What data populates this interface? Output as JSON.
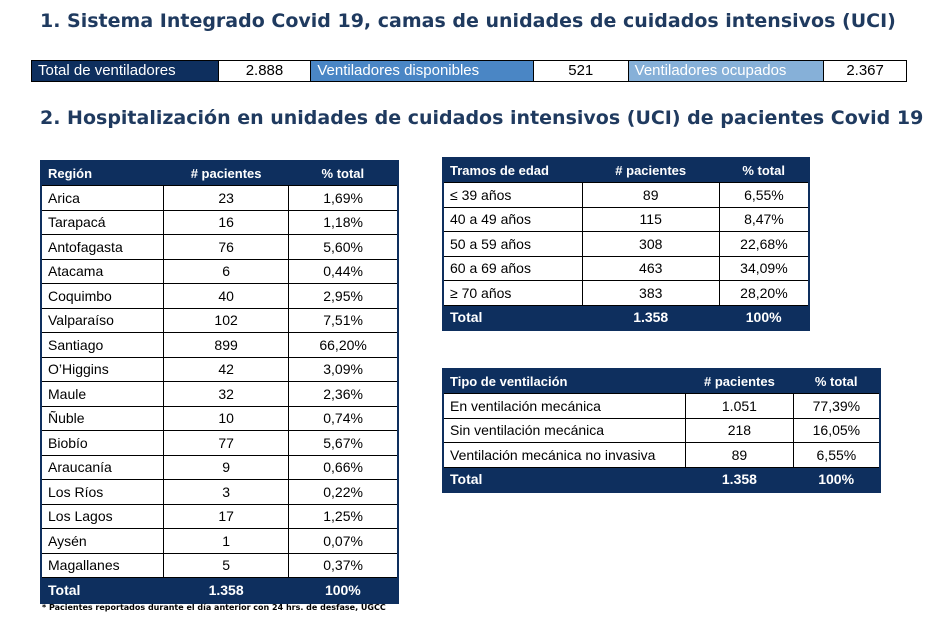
{
  "section1": {
    "title": "1. Sistema Integrado Covid 19, camas de unidades de cuidados intensivos (UCI)"
  },
  "ventiladores": {
    "total_label": "Total de ventiladores",
    "total_value": "2.888",
    "disponibles_label": "Ventiladores disponibles",
    "disponibles_value": "521",
    "ocupados_label": "Ventiladores ocupados",
    "ocupados_value": "2.367",
    "colors": {
      "dark": "#0e2f5e",
      "mid": "#4a86c5",
      "light": "#86b0d8"
    }
  },
  "section2": {
    "title": "2. Hospitalización en unidades de cuidados intensivos (UCI) de pacientes Covid 19"
  },
  "region_table": {
    "headers": [
      "Región",
      "# pacientes",
      "% total"
    ],
    "rows": [
      [
        "Arica",
        "23",
        "1,69%"
      ],
      [
        "Tarapacá",
        "16",
        "1,18%"
      ],
      [
        "Antofagasta",
        "76",
        "5,60%"
      ],
      [
        "Atacama",
        "6",
        "0,44%"
      ],
      [
        "Coquimbo",
        "40",
        "2,95%"
      ],
      [
        "Valparaíso",
        "102",
        "7,51%"
      ],
      [
        "Santiago",
        "899",
        "66,20%"
      ],
      [
        "O’Higgins",
        "42",
        "3,09%"
      ],
      [
        "Maule",
        "32",
        "2,36%"
      ],
      [
        "Ñuble",
        "10",
        "0,74%"
      ],
      [
        "Biobío",
        "77",
        "5,67%"
      ],
      [
        "Araucanía",
        "9",
        "0,66%"
      ],
      [
        "Los Ríos",
        "3",
        "0,22%"
      ],
      [
        "Los Lagos",
        "17",
        "1,25%"
      ],
      [
        "Aysén",
        "1",
        "0,07%"
      ],
      [
        "Magallanes",
        "5",
        "0,37%"
      ]
    ],
    "total": [
      "Total",
      "1.358",
      "100%"
    ],
    "footnote": "* Pacientes reportados durante el día anterior con 24 hrs. de desfase, UGCC"
  },
  "edad_table": {
    "headers": [
      "Tramos de edad",
      "# pacientes",
      "% total"
    ],
    "rows": [
      [
        "≤ 39 años",
        "89",
        "6,55%"
      ],
      [
        "40 a 49 años",
        "115",
        "8,47%"
      ],
      [
        "50 a 59 años",
        "308",
        "22,68%"
      ],
      [
        "60 a 69 años",
        "463",
        "34,09%"
      ],
      [
        "≥ 70 años",
        "383",
        "28,20%"
      ]
    ],
    "total": [
      "Total",
      "1.358",
      "100%"
    ]
  },
  "vent_table": {
    "headers": [
      "Tipo de ventilación",
      "# pacientes",
      "% total"
    ],
    "rows": [
      [
        "En ventilación mecánica",
        "1.051",
        "77,39%"
      ],
      [
        "Sin ventilación mecánica",
        "218",
        "16,05%"
      ],
      [
        "Ventilación mecánica no invasiva",
        "89",
        "6,55%"
      ]
    ],
    "total": [
      "Total",
      "1.358",
      "100%"
    ]
  }
}
